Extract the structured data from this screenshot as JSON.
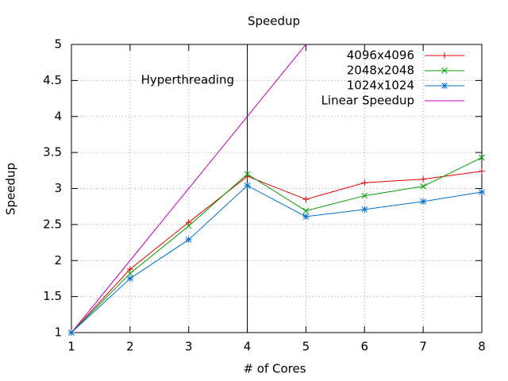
{
  "chart_data": {
    "type": "line",
    "title": "Speedup",
    "x_label": "# of Cores",
    "y_label": "Speedup",
    "x": [
      1,
      2,
      3,
      4,
      5,
      6,
      7,
      8
    ],
    "series": [
      {
        "name": "4096x4096",
        "color": "#e00000",
        "marker": "plus",
        "values": [
          1,
          1.88,
          2.53,
          3.17,
          2.85,
          3.08,
          3.13,
          3.24
        ]
      },
      {
        "name": "2048x2048",
        "color": "#00a000",
        "marker": "cross",
        "values": [
          1,
          1.82,
          2.48,
          3.2,
          2.69,
          2.9,
          3.03,
          3.43
        ]
      },
      {
        "name": "1024x1024",
        "color": "#0070d0",
        "marker": "star",
        "values": [
          1,
          1.75,
          2.29,
          3.04,
          2.61,
          2.71,
          2.82,
          2.95
        ]
      },
      {
        "name": "Linear Speedup",
        "color": "#c000c0",
        "marker": "none",
        "values": [
          1,
          2,
          3,
          4,
          5,
          null,
          null,
          null
        ]
      }
    ],
    "xlim": [
      1,
      8
    ],
    "xticks": [
      1,
      2,
      3,
      4,
      5,
      6,
      7,
      8
    ],
    "ylim": [
      1,
      5
    ],
    "yticks": [
      1,
      1.5,
      2,
      2.5,
      3,
      3.5,
      4,
      4.5,
      5
    ],
    "grid": true,
    "legend": "top-right",
    "vertical_line": {
      "x": 4,
      "label": "Hyperthreading"
    }
  }
}
